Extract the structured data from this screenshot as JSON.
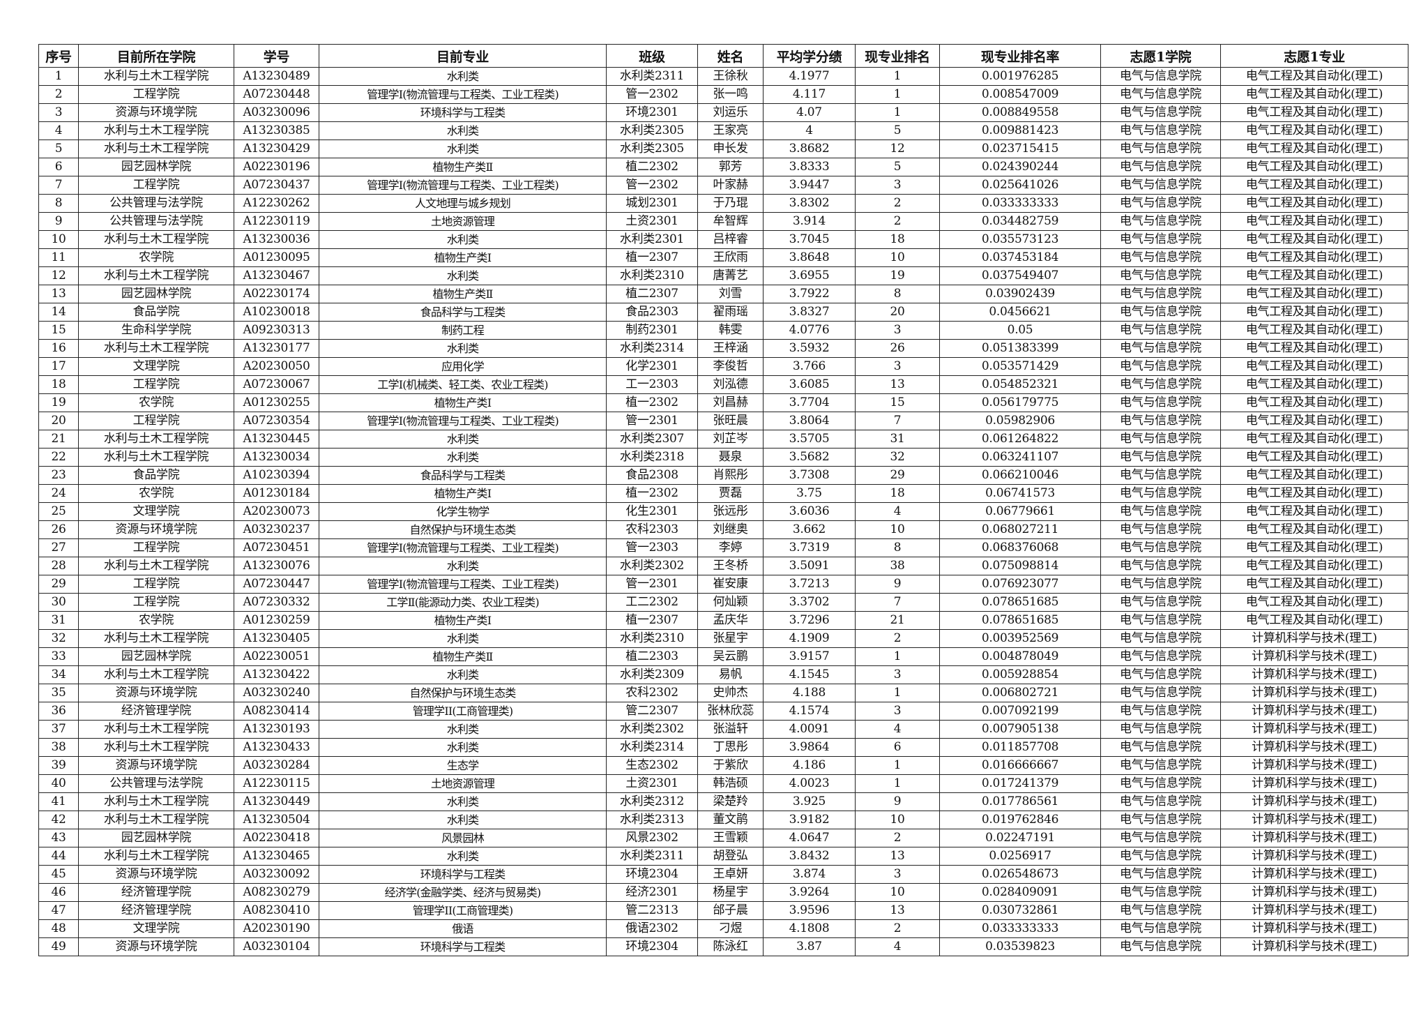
{
  "headers": [
    "序号",
    "目前所在学院",
    "学号",
    "目前专业",
    "班级",
    "姓名",
    "平均学分绩",
    "现专业排名",
    "现专业排名率",
    "志愿1学院",
    "志愿1专业"
  ],
  "rows": [
    [
      "1",
      "水利与土木工程学院",
      "A13230489",
      "水利类",
      "水利类2311",
      "王徐秋",
      "4.1977",
      "1",
      "0.001976285",
      "电气与信息学院",
      "电气工程及其自动化(理工)"
    ],
    [
      "2",
      "工程学院",
      "A07230448",
      "管理学Ⅰ(物流管理与工程类、工业工程类)",
      "管一2302",
      "张一鸣",
      "4.117",
      "1",
      "0.008547009",
      "电气与信息学院",
      "电气工程及其自动化(理工)"
    ],
    [
      "3",
      "资源与环境学院",
      "A03230096",
      "环境科学与工程类",
      "环境2301",
      "刘运乐",
      "4.07",
      "1",
      "0.008849558",
      "电气与信息学院",
      "电气工程及其自动化(理工)"
    ],
    [
      "4",
      "水利与土木工程学院",
      "A13230385",
      "水利类",
      "水利类2305",
      "王家亮",
      "4",
      "5",
      "0.009881423",
      "电气与信息学院",
      "电气工程及其自动化(理工)"
    ],
    [
      "5",
      "水利与土木工程学院",
      "A13230429",
      "水利类",
      "水利类2305",
      "申长发",
      "3.8682",
      "12",
      "0.023715415",
      "电气与信息学院",
      "电气工程及其自动化(理工)"
    ],
    [
      "6",
      "园艺园林学院",
      "A02230196",
      "植物生产类Ⅱ",
      "植二2302",
      "郭芳",
      "3.8333",
      "5",
      "0.024390244",
      "电气与信息学院",
      "电气工程及其自动化(理工)"
    ],
    [
      "7",
      "工程学院",
      "A07230437",
      "管理学Ⅰ(物流管理与工程类、工业工程类)",
      "管一2302",
      "叶家赫",
      "3.9447",
      "3",
      "0.025641026",
      "电气与信息学院",
      "电气工程及其自动化(理工)"
    ],
    [
      "8",
      "公共管理与法学院",
      "A12230262",
      "人文地理与城乡规划",
      "城划2301",
      "于乃琨",
      "3.8302",
      "2",
      "0.033333333",
      "电气与信息学院",
      "电气工程及其自动化(理工)"
    ],
    [
      "9",
      "公共管理与法学院",
      "A12230119",
      "土地资源管理",
      "土资2301",
      "牟智辉",
      "3.914",
      "2",
      "0.034482759",
      "电气与信息学院",
      "电气工程及其自动化(理工)"
    ],
    [
      "10",
      "水利与土木工程学院",
      "A13230036",
      "水利类",
      "水利类2301",
      "吕梓睿",
      "3.7045",
      "18",
      "0.035573123",
      "电气与信息学院",
      "电气工程及其自动化(理工)"
    ],
    [
      "11",
      "农学院",
      "A01230095",
      "植物生产类I",
      "植一2307",
      "王欣雨",
      "3.8648",
      "10",
      "0.037453184",
      "电气与信息学院",
      "电气工程及其自动化(理工)"
    ],
    [
      "12",
      "水利与土木工程学院",
      "A13230467",
      "水利类",
      "水利类2310",
      "唐菁艺",
      "3.6955",
      "19",
      "0.037549407",
      "电气与信息学院",
      "电气工程及其自动化(理工)"
    ],
    [
      "13",
      "园艺园林学院",
      "A02230174",
      "植物生产类Ⅱ",
      "植二2307",
      "刘雪",
      "3.7922",
      "8",
      "0.03902439",
      "电气与信息学院",
      "电气工程及其自动化(理工)"
    ],
    [
      "14",
      "食品学院",
      "A10230018",
      "食品科学与工程类",
      "食品2303",
      "翟雨瑶",
      "3.8327",
      "20",
      "0.0456621",
      "电气与信息学院",
      "电气工程及其自动化(理工)"
    ],
    [
      "15",
      "生命科学学院",
      "A09230313",
      "制药工程",
      "制药2301",
      "韩雯",
      "4.0776",
      "3",
      "0.05",
      "电气与信息学院",
      "电气工程及其自动化(理工)"
    ],
    [
      "16",
      "水利与土木工程学院",
      "A13230177",
      "水利类",
      "水利类2314",
      "王梓涵",
      "3.5932",
      "26",
      "0.051383399",
      "电气与信息学院",
      "电气工程及其自动化(理工)"
    ],
    [
      "17",
      "文理学院",
      "A20230050",
      "应用化学",
      "化学2301",
      "李俊哲",
      "3.766",
      "3",
      "0.053571429",
      "电气与信息学院",
      "电气工程及其自动化(理工)"
    ],
    [
      "18",
      "工程学院",
      "A07230067",
      "工学Ⅰ(机械类、轻工类、农业工程类)",
      "工一2303",
      "刘泓德",
      "3.6085",
      "13",
      "0.054852321",
      "电气与信息学院",
      "电气工程及其自动化(理工)"
    ],
    [
      "19",
      "农学院",
      "A01230255",
      "植物生产类I",
      "植一2302",
      "刘昌赫",
      "3.7704",
      "15",
      "0.056179775",
      "电气与信息学院",
      "电气工程及其自动化(理工)"
    ],
    [
      "20",
      "工程学院",
      "A07230354",
      "管理学Ⅰ(物流管理与工程类、工业工程类)",
      "管一2301",
      "张旺晨",
      "3.8064",
      "7",
      "0.05982906",
      "电气与信息学院",
      "电气工程及其自动化(理工)"
    ],
    [
      "21",
      "水利与土木工程学院",
      "A13230445",
      "水利类",
      "水利类2307",
      "刘芷岑",
      "3.5705",
      "31",
      "0.061264822",
      "电气与信息学院",
      "电气工程及其自动化(理工)"
    ],
    [
      "22",
      "水利与土木工程学院",
      "A13230034",
      "水利类",
      "水利类2318",
      "聂泉",
      "3.5682",
      "32",
      "0.063241107",
      "电气与信息学院",
      "电气工程及其自动化(理工)"
    ],
    [
      "23",
      "食品学院",
      "A10230394",
      "食品科学与工程类",
      "食品2308",
      "肖熙彤",
      "3.7308",
      "29",
      "0.066210046",
      "电气与信息学院",
      "电气工程及其自动化(理工)"
    ],
    [
      "24",
      "农学院",
      "A01230184",
      "植物生产类I",
      "植一2302",
      "贾磊",
      "3.75",
      "18",
      "0.06741573",
      "电气与信息学院",
      "电气工程及其自动化(理工)"
    ],
    [
      "25",
      "文理学院",
      "A20230073",
      "化学生物学",
      "化生2301",
      "张远彤",
      "3.6036",
      "4",
      "0.06779661",
      "电气与信息学院",
      "电气工程及其自动化(理工)"
    ],
    [
      "26",
      "资源与环境学院",
      "A03230237",
      "自然保护与环境生态类",
      "农科2303",
      "刘继奥",
      "3.662",
      "10",
      "0.068027211",
      "电气与信息学院",
      "电气工程及其自动化(理工)"
    ],
    [
      "27",
      "工程学院",
      "A07230451",
      "管理学Ⅰ(物流管理与工程类、工业工程类)",
      "管一2303",
      "李婷",
      "3.7319",
      "8",
      "0.068376068",
      "电气与信息学院",
      "电气工程及其自动化(理工)"
    ],
    [
      "28",
      "水利与土木工程学院",
      "A13230076",
      "水利类",
      "水利类2302",
      "王冬桥",
      "3.5091",
      "38",
      "0.075098814",
      "电气与信息学院",
      "电气工程及其自动化(理工)"
    ],
    [
      "29",
      "工程学院",
      "A07230447",
      "管理学Ⅰ(物流管理与工程类、工业工程类)",
      "管一2301",
      "崔安康",
      "3.7213",
      "9",
      "0.076923077",
      "电气与信息学院",
      "电气工程及其自动化(理工)"
    ],
    [
      "30",
      "工程学院",
      "A07230332",
      "工学Ⅱ(能源动力类、农业工程类)",
      "工二2302",
      "何灿颖",
      "3.3702",
      "7",
      "0.078651685",
      "电气与信息学院",
      "电气工程及其自动化(理工)"
    ],
    [
      "31",
      "农学院",
      "A01230259",
      "植物生产类I",
      "植一2307",
      "孟庆华",
      "3.7296",
      "21",
      "0.078651685",
      "电气与信息学院",
      "电气工程及其自动化(理工)"
    ],
    [
      "32",
      "水利与土木工程学院",
      "A13230405",
      "水利类",
      "水利类2310",
      "张星宇",
      "4.1909",
      "2",
      "0.003952569",
      "电气与信息学院",
      "计算机科学与技术(理工)"
    ],
    [
      "33",
      "园艺园林学院",
      "A02230051",
      "植物生产类Ⅱ",
      "植二2303",
      "吴云鹏",
      "3.9157",
      "1",
      "0.004878049",
      "电气与信息学院",
      "计算机科学与技术(理工)"
    ],
    [
      "34",
      "水利与土木工程学院",
      "A13230422",
      "水利类",
      "水利类2309",
      "易帆",
      "4.1545",
      "3",
      "0.005928854",
      "电气与信息学院",
      "计算机科学与技术(理工)"
    ],
    [
      "35",
      "资源与环境学院",
      "A03230240",
      "自然保护与环境生态类",
      "农科2302",
      "史帅杰",
      "4.188",
      "1",
      "0.006802721",
      "电气与信息学院",
      "计算机科学与技术(理工)"
    ],
    [
      "36",
      "经济管理学院",
      "A08230414",
      "管理学II(工商管理类)",
      "管二2307",
      "张林欣蕊",
      "4.1574",
      "3",
      "0.007092199",
      "电气与信息学院",
      "计算机科学与技术(理工)"
    ],
    [
      "37",
      "水利与土木工程学院",
      "A13230193",
      "水利类",
      "水利类2302",
      "张溢轩",
      "4.0091",
      "4",
      "0.007905138",
      "电气与信息学院",
      "计算机科学与技术(理工)"
    ],
    [
      "38",
      "水利与土木工程学院",
      "A13230433",
      "水利类",
      "水利类2314",
      "丁思彤",
      "3.9864",
      "6",
      "0.011857708",
      "电气与信息学院",
      "计算机科学与技术(理工)"
    ],
    [
      "39",
      "资源与环境学院",
      "A03230284",
      "生态学",
      "生态2302",
      "于紫欣",
      "4.186",
      "1",
      "0.016666667",
      "电气与信息学院",
      "计算机科学与技术(理工)"
    ],
    [
      "40",
      "公共管理与法学院",
      "A12230115",
      "土地资源管理",
      "土资2301",
      "韩浩硕",
      "4.0023",
      "1",
      "0.017241379",
      "电气与信息学院",
      "计算机科学与技术(理工)"
    ],
    [
      "41",
      "水利与土木工程学院",
      "A13230449",
      "水利类",
      "水利类2312",
      "梁楚羚",
      "3.925",
      "9",
      "0.017786561",
      "电气与信息学院",
      "计算机科学与技术(理工)"
    ],
    [
      "42",
      "水利与土木工程学院",
      "A13230504",
      "水利类",
      "水利类2313",
      "董文鹃",
      "3.9182",
      "10",
      "0.019762846",
      "电气与信息学院",
      "计算机科学与技术(理工)"
    ],
    [
      "43",
      "园艺园林学院",
      "A02230418",
      "风景园林",
      "风景2302",
      "王雪颖",
      "4.0647",
      "2",
      "0.02247191",
      "电气与信息学院",
      "计算机科学与技术(理工)"
    ],
    [
      "44",
      "水利与土木工程学院",
      "A13230465",
      "水利类",
      "水利类2311",
      "胡登弘",
      "3.8432",
      "13",
      "0.0256917",
      "电气与信息学院",
      "计算机科学与技术(理工)"
    ],
    [
      "45",
      "资源与环境学院",
      "A03230092",
      "环境科学与工程类",
      "环境2304",
      "王卓妍",
      "3.874",
      "3",
      "0.026548673",
      "电气与信息学院",
      "计算机科学与技术(理工)"
    ],
    [
      "46",
      "经济管理学院",
      "A08230279",
      "经济学(金融学类、经济与贸易类)",
      "经济2301",
      "杨星宇",
      "3.9264",
      "10",
      "0.028409091",
      "电气与信息学院",
      "计算机科学与技术(理工)"
    ],
    [
      "47",
      "经济管理学院",
      "A08230410",
      "管理学II(工商管理类)",
      "管二2313",
      "邰子晨",
      "3.9596",
      "13",
      "0.030732861",
      "电气与信息学院",
      "计算机科学与技术(理工)"
    ],
    [
      "48",
      "文理学院",
      "A20230190",
      "俄语",
      "俄语2302",
      "刁煜",
      "4.1808",
      "2",
      "0.033333333",
      "电气与信息学院",
      "计算机科学与技术(理工)"
    ],
    [
      "49",
      "资源与环境学院",
      "A03230104",
      "环境科学与工程类",
      "环境2304",
      "陈泳红",
      "3.87",
      "4",
      "0.03539823",
      "电气与信息学院",
      "计算机科学与技术(理工)"
    ]
  ]
}
